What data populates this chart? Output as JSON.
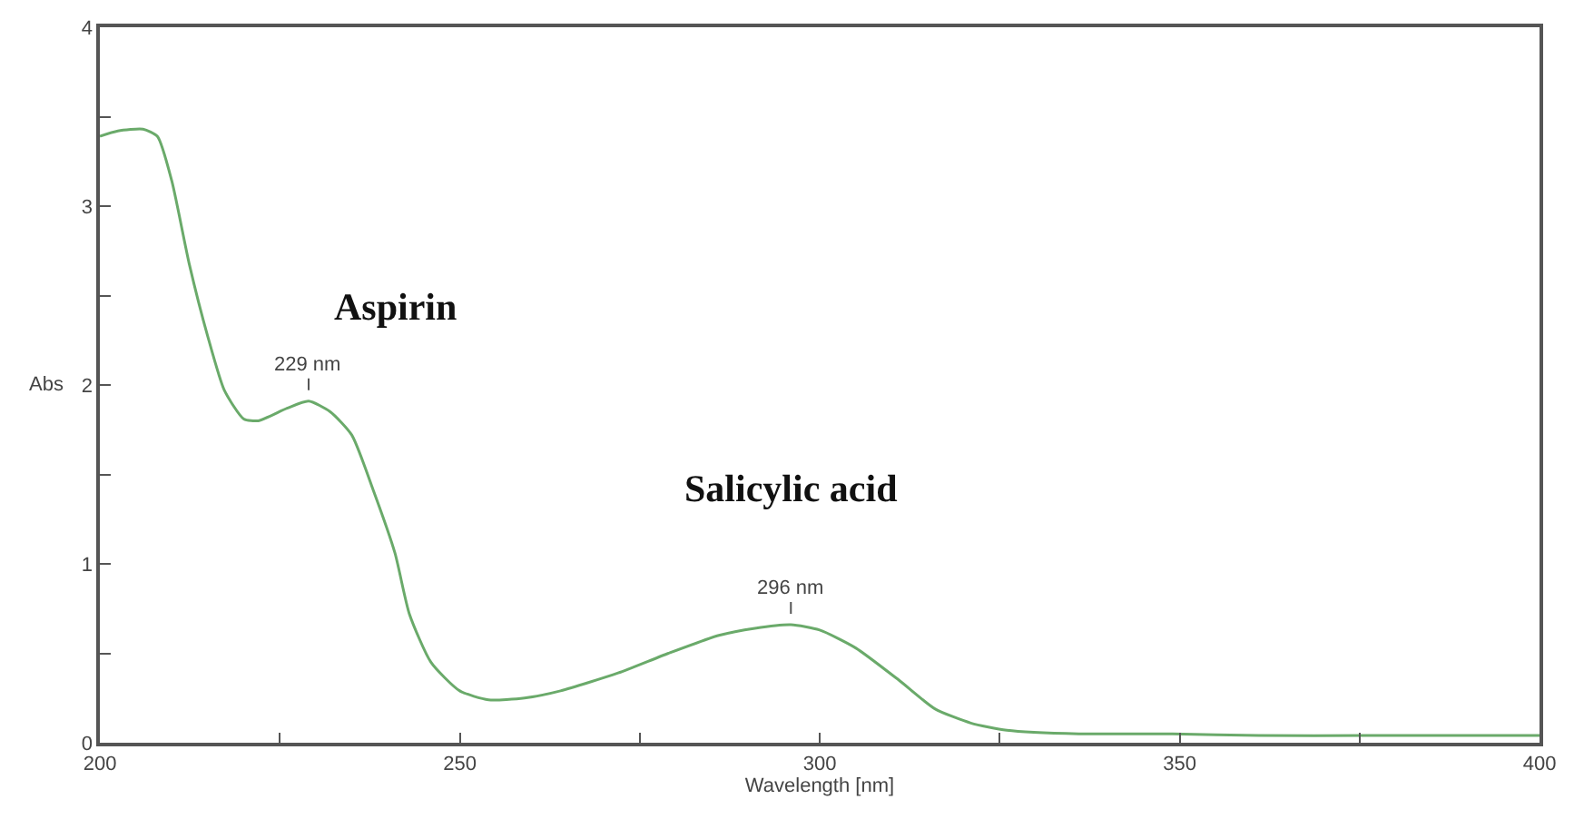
{
  "chart_data": {
    "type": "line",
    "xlabel": "Wavelength [nm]",
    "ylabel": "Abs",
    "x": [
      200,
      202.5,
      206,
      208,
      210,
      212.4,
      215,
      217.3,
      220,
      222,
      226,
      229,
      232,
      235,
      238,
      241,
      243,
      246,
      250,
      254,
      259,
      264,
      272,
      279,
      286,
      291,
      296,
      300,
      305,
      311,
      316,
      321,
      326,
      336,
      349,
      361,
      376,
      400
    ],
    "series": [
      {
        "color": "#6aaa6a",
        "values": [
          3.39,
          3.42,
          3.43,
          3.39,
          3.14,
          2.68,
          2.27,
          1.97,
          1.81,
          1.8,
          1.87,
          1.91,
          1.85,
          1.72,
          1.41,
          1.06,
          0.72,
          0.45,
          0.29,
          0.24,
          0.25,
          0.29,
          0.39,
          0.5,
          0.6,
          0.64,
          0.66,
          0.63,
          0.53,
          0.35,
          0.19,
          0.11,
          0.07,
          0.05,
          0.05,
          0.04,
          0.04,
          0.04
        ]
      }
    ],
    "xlim": [
      200,
      400
    ],
    "ylim": [
      0,
      4
    ],
    "xticks": [
      200,
      {
        "value": 225,
        "label": null
      },
      250,
      {
        "value": 275,
        "label": null
      },
      300,
      {
        "value": 325,
        "label": null
      },
      350,
      {
        "value": 375,
        "label": null
      },
      400
    ],
    "yticks": [
      0,
      {
        "value": 0.5,
        "label": null
      },
      1,
      {
        "value": 1.5,
        "label": null
      },
      2,
      {
        "value": 2.5,
        "label": null
      },
      3,
      {
        "value": 3.5,
        "label": null
      },
      4
    ],
    "annotations": [
      "Aspirin",
      "Salicylic acid",
      {
        "text": "229 nm",
        "x": 229,
        "y": 1.91
      },
      {
        "text": "296 nm",
        "x": 296,
        "y": 0.66
      }
    ],
    "marker": "none",
    "line_style": "solid"
  }
}
